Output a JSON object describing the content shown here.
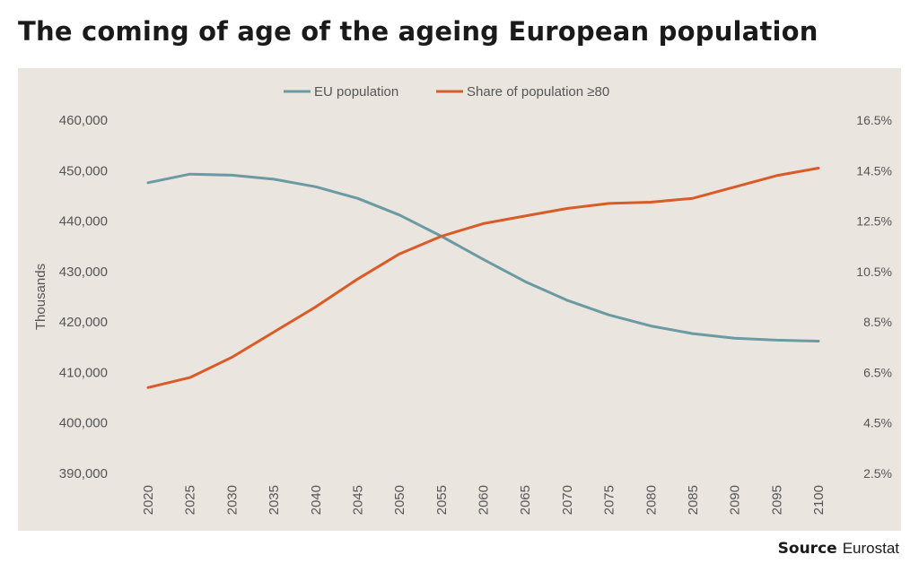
{
  "title": "The coming of age of the ageing European population",
  "source": {
    "label": "Source",
    "value": "Eurostat"
  },
  "colors": {
    "panel": "#ebe5df",
    "eu_population": "#6a9aa2",
    "share_80": "#d95b27"
  },
  "chart_data": {
    "type": "line",
    "title": "The coming of age of the ageing European population",
    "x": [
      2020,
      2025,
      2030,
      2035,
      2040,
      2045,
      2050,
      2055,
      2060,
      2065,
      2070,
      2075,
      2080,
      2085,
      2090,
      2095,
      2100
    ],
    "x_tick_labels": [
      "2020",
      "2025",
      "2030",
      "2035",
      "2040",
      "2045",
      "2050",
      "2055",
      "2060",
      "2065",
      "2070",
      "2075",
      "2080",
      "2085",
      "2090",
      "2095",
      "2100"
    ],
    "ylabel": "Thousands",
    "ylim": [
      390000,
      460000
    ],
    "y_ticks": [
      390000,
      400000,
      410000,
      420000,
      430000,
      440000,
      450000,
      460000
    ],
    "y_tick_labels": [
      "390,000",
      "400,000",
      "410,000",
      "420,000",
      "430,000",
      "440,000",
      "450,000",
      "460,000"
    ],
    "y2lim": [
      2.5,
      16.5
    ],
    "y2_ticks": [
      2.5,
      4.5,
      6.5,
      8.5,
      10.5,
      12.5,
      14.5,
      16.5
    ],
    "y2_tick_labels": [
      "2.5%",
      "4.5%",
      "6.5%",
      "8.5%",
      "10.5%",
      "12.5%",
      "14.5%",
      "16.5%"
    ],
    "legend_position": "top-center",
    "grid": false,
    "series": [
      {
        "name": "EU population",
        "axis": "left",
        "color": "#6a9aa2",
        "values": [
          447600,
          449300,
          449100,
          448300,
          446800,
          444500,
          441200,
          437000,
          432400,
          428000,
          424300,
          421400,
          419200,
          417700,
          416800,
          416400,
          416200
        ]
      },
      {
        "name": "Share of population ≥80",
        "axis": "right",
        "color": "#d95b27",
        "values": [
          5.9,
          6.3,
          7.1,
          8.1,
          9.1,
          10.2,
          11.2,
          11.9,
          12.4,
          12.7,
          13.0,
          13.2,
          13.25,
          13.4,
          13.85,
          14.3,
          14.6
        ]
      }
    ]
  }
}
